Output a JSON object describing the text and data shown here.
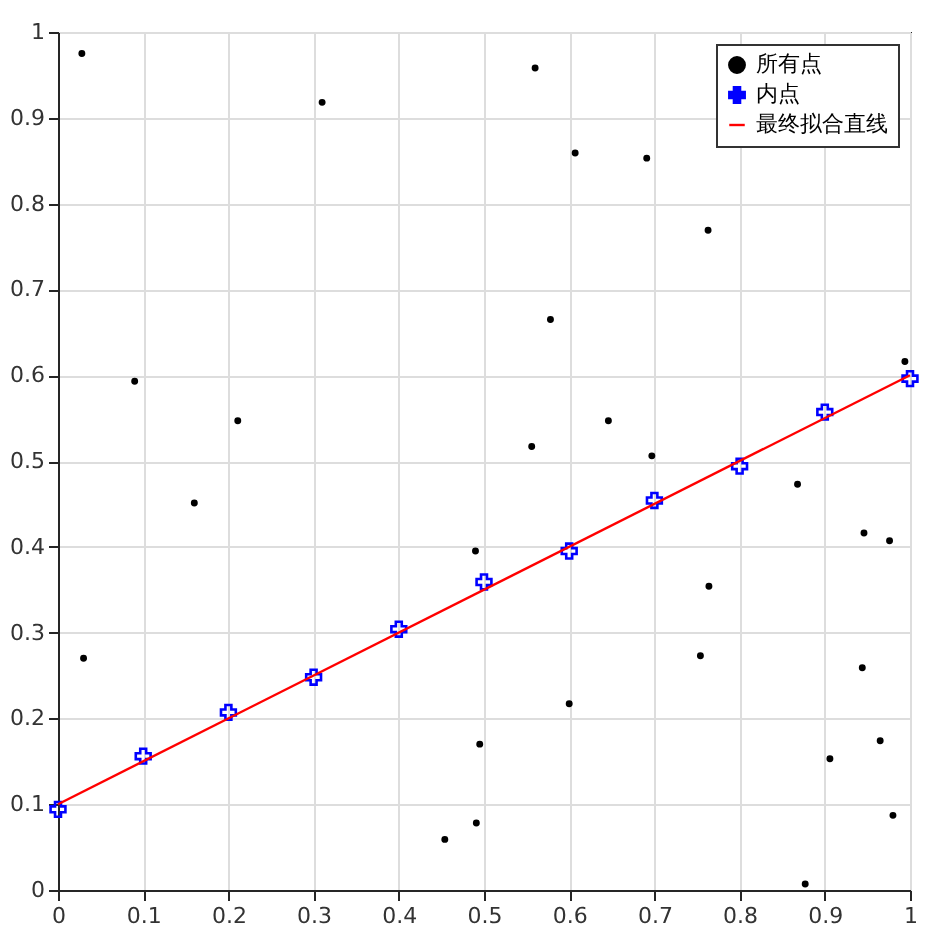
{
  "chart_data": {
    "type": "scatter",
    "xlim": [
      0,
      1
    ],
    "ylim": [
      0,
      1
    ],
    "xticks": [
      0,
      0.1,
      0.2,
      0.3,
      0.4,
      0.5,
      0.6,
      0.7,
      0.8,
      0.9,
      1
    ],
    "yticks": [
      0,
      0.1,
      0.2,
      0.3,
      0.4,
      0.5,
      0.6,
      0.7,
      0.8,
      0.9,
      1
    ],
    "grid": true,
    "legend": "top right",
    "series": [
      {
        "name": "所有点",
        "marker": "circle",
        "color": "#000000",
        "x": [
          0.028,
          0.31,
          0.09,
          0.211,
          0.16,
          0.03,
          0.49,
          0.495,
          0.491,
          0.454,
          0.56,
          0.607,
          0.691,
          0.763,
          0.578,
          0.994,
          0.646,
          0.556,
          0.697,
          0.868,
          0.946,
          0.976,
          0.764,
          0.754,
          0.944,
          0.6,
          0.965,
          0.906,
          0.98,
          0.877
        ],
        "values": [
          0.975,
          0.918,
          0.593,
          0.547,
          0.451,
          0.27,
          0.395,
          0.17,
          0.078,
          0.059,
          0.958,
          0.859,
          0.853,
          0.769,
          0.665,
          0.616,
          0.547,
          0.517,
          0.506,
          0.473,
          0.416,
          0.407,
          0.354,
          0.273,
          0.259,
          0.217,
          0.174,
          0.153,
          0.087,
          0.007
        ]
      },
      {
        "name": "内点",
        "marker": "cross",
        "color": "#0000ff",
        "x": [
          0,
          0.1,
          0.2,
          0.3,
          0.4,
          0.5,
          0.6,
          0.7,
          0.8,
          0.9,
          1
        ],
        "values": [
          0.094,
          0.156,
          0.207,
          0.248,
          0.304,
          0.359,
          0.395,
          0.454,
          0.494,
          0.557,
          0.596
        ]
      },
      {
        "name": "最终拟合直线",
        "type": "line",
        "line_style": "solid",
        "color": "#ff0000",
        "x": [
          0,
          1
        ],
        "values": [
          0.1,
          0.6
        ]
      }
    ]
  }
}
